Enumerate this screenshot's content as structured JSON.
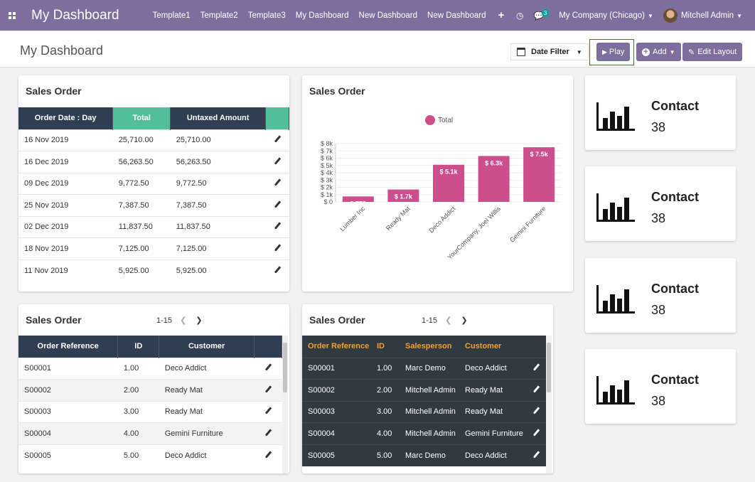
{
  "navbar": {
    "brand": "My Dashboard",
    "menu": [
      "Template1",
      "Template2",
      "Template3",
      "My Dashboard",
      "New Dashboard",
      "New Dashboard"
    ],
    "plus": "+",
    "messages_count": "3",
    "company": "My Company (Chicago)",
    "user": "Mitchell Admin"
  },
  "control": {
    "title": "My Dashboard",
    "date_filter": "Date Filter",
    "play": "Play",
    "add": "Add",
    "edit_layout": "Edit Layout"
  },
  "sales_table": {
    "title": "Sales Order",
    "columns": [
      "Order Date : Day",
      "Total",
      "Untaxed Amount"
    ],
    "rows": [
      [
        "16 Nov 2019",
        "25,710.00",
        "25,710.00"
      ],
      [
        "16 Dec 2019",
        "56,263.50",
        "56,263.50"
      ],
      [
        "09 Dec 2019",
        "9,772.50",
        "9,772.50"
      ],
      [
        "25 Nov 2019",
        "7,387.50",
        "7,387.50"
      ],
      [
        "02 Dec 2019",
        "11,837.50",
        "11,837.50"
      ],
      [
        "18 Nov 2019",
        "7,125.00",
        "7,125.00"
      ],
      [
        "11 Nov 2019",
        "5,925.00",
        "5,925.00"
      ]
    ]
  },
  "chart_card": {
    "title": "Sales Order",
    "chart_data": {
      "type": "bar",
      "categories": [
        "Lumber Inc",
        "Ready Mat",
        "Deco Addict",
        "YourCompany, Joel Willis",
        "Gemini Furniture"
      ],
      "series": [
        {
          "name": "Total",
          "values": [
            750,
            1700,
            5100,
            6300,
            7500
          ]
        }
      ],
      "data_labels": [
        "$ 750",
        "$ 1.7k",
        "$ 5.1k",
        "$ 6.3k",
        "$ 7.5k"
      ],
      "y_ticks": [
        "$ 0",
        "$ 1k",
        "$ 2k",
        "$ 3k",
        "$ 4k",
        "$ 5k",
        "$ 6k",
        "$ 7k",
        "$ 8k"
      ],
      "ylim": [
        0,
        8000
      ],
      "legend_position": "top",
      "color": "#cc4f8c"
    }
  },
  "stats": [
    {
      "label": "Contact",
      "value": "38"
    },
    {
      "label": "Contact",
      "value": "38"
    },
    {
      "label": "Contact",
      "value": "38"
    },
    {
      "label": "Contact",
      "value": "38"
    }
  ],
  "orders_left": {
    "title": "Sales Order",
    "pager": "1-15",
    "columns": [
      "Order Reference",
      "ID",
      "Customer"
    ],
    "rows": [
      [
        "S00001",
        "1.00",
        "Deco Addict"
      ],
      [
        "S00002",
        "2.00",
        "Ready Mat"
      ],
      [
        "S00003",
        "3.00",
        "Ready Mat"
      ],
      [
        "S00004",
        "4.00",
        "Gemini Furniture"
      ],
      [
        "S00005",
        "5.00",
        "Deco Addict"
      ]
    ]
  },
  "orders_right": {
    "title": "Sales Order",
    "pager": "1-15",
    "columns": [
      "Order Reference",
      "ID",
      "Salesperson",
      "Customer"
    ],
    "rows": [
      [
        "S00001",
        "1.00",
        "Marc Demo",
        "Deco Addict"
      ],
      [
        "S00002",
        "2.00",
        "Mitchell Admin",
        "Ready Mat"
      ],
      [
        "S00003",
        "3.00",
        "Mitchell Admin",
        "Ready Mat"
      ],
      [
        "S00004",
        "4.00",
        "Mitchell Admin",
        "Gemini Furniture"
      ],
      [
        "S00005",
        "5.00",
        "Marc Demo",
        "Deco Addict"
      ]
    ]
  },
  "colors": {
    "navbar": "#7c6f9e",
    "table_header": "#2f3e52",
    "accent_green": "#53bf9a",
    "bar": "#cc4f8c"
  }
}
